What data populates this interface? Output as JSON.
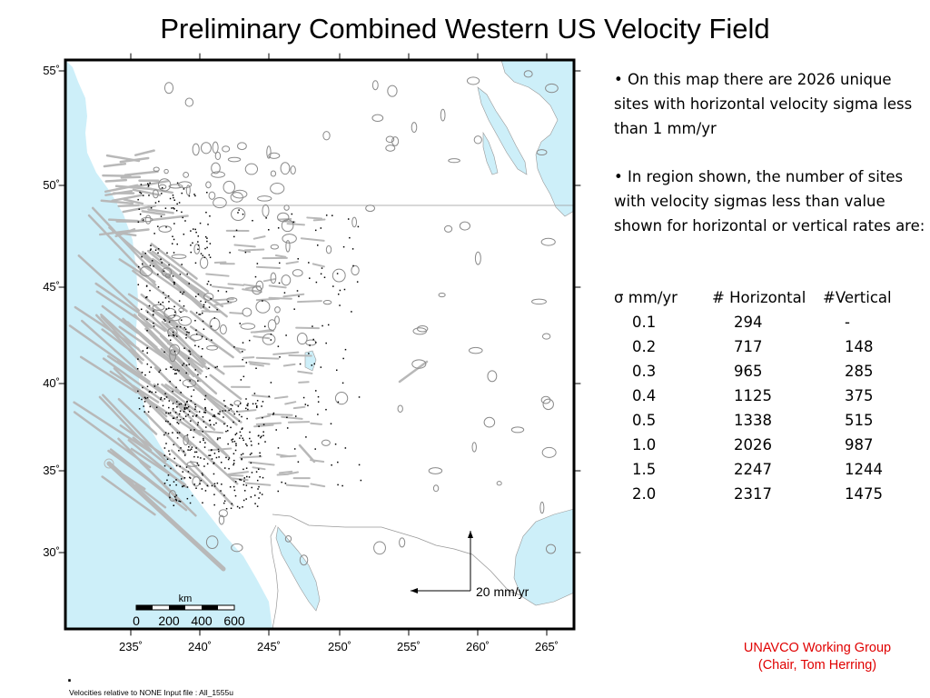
{
  "title": "Preliminary Combined Western US Velocity Field",
  "colors": {
    "ocean": "#cdeff9",
    "land": "#ffffff",
    "boundary": "#999999",
    "vector": "#b8b8b8",
    "site": "#000000",
    "credit": "#e00000"
  },
  "map": {
    "lon_labels": [
      "235˚",
      "240˚",
      "245˚",
      "250˚",
      "255˚",
      "260˚",
      "265˚"
    ],
    "lat_labels": [
      "55˚",
      "50˚",
      "45˚",
      "40˚",
      "35˚",
      "30˚"
    ],
    "scale_bar": {
      "unit": "km",
      "labels": [
        "0",
        "200",
        "400",
        "600"
      ]
    },
    "velocity_scale": "20 mm/yr"
  },
  "info": {
    "para1": "• On this map there are 2026 unique sites with horizontal velocity sigma less than 1 mm/yr",
    "para2": "• In region shown, the number of sites with velocity sigmas less than value shown for horizontal or vertical rates are:"
  },
  "sigma_table": {
    "headers": [
      "σ mm/yr",
      "# Horizontal",
      "#Vertical"
    ],
    "rows": [
      [
        "0.1",
        "294",
        "-"
      ],
      [
        "0.2",
        "717",
        "148"
      ],
      [
        "0.3",
        "965",
        "285"
      ],
      [
        "0.4",
        "1125",
        "375"
      ],
      [
        "0.5",
        "1338",
        "515"
      ],
      [
        "1.0",
        "2026",
        "987"
      ],
      [
        "1.5",
        "2247",
        "1244"
      ],
      [
        "2.0",
        "2317",
        "1475"
      ]
    ]
  },
  "credit": {
    "line1": "UNAVCO Working Group",
    "line2": "(Chair, Tom Herring)"
  },
  "footer": {
    "dot": ".",
    "note": "Velocities relative to NONE     Input file : All_1555u"
  }
}
